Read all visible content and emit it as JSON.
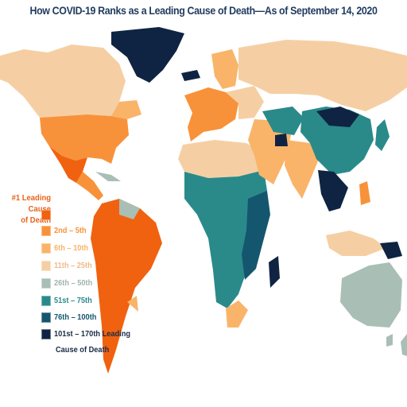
{
  "title": "How COVID-19 Ranks as a Leading Cause of Death—As of September 14, 2020",
  "colors": {
    "rank1": "#f0620f",
    "rank2_5": "#f8923a",
    "rank6_10": "#f9b46a",
    "rank11_25": "#f5cfa3",
    "rank26_50": "#a9bfb6",
    "rank51_75": "#2a8a8a",
    "rank76_100": "#14566e",
    "rank101_170": "#0f2442",
    "ocean": "#ffffff"
  },
  "legend": {
    "title_line1": "#1 Leading Cause",
    "title_line2": "of Death",
    "items": [
      {
        "label": "",
        "color": "#f0620f"
      },
      {
        "label": "2nd – 5th",
        "color": "#f8923a"
      },
      {
        "label": "6th – 10th",
        "color": "#f9b46a"
      },
      {
        "label": "11th – 25th",
        "color": "#f5cfa3"
      },
      {
        "label": "26th – 50th",
        "color": "#a9bfb6"
      },
      {
        "label": "51st – 75th",
        "color": "#2a8a8a"
      },
      {
        "label": "76th – 100th",
        "color": "#14566e"
      },
      {
        "label": "101st – 170th Leading",
        "color": "#0f2442"
      }
    ],
    "last_caption": "Cause of Death"
  },
  "regions": [
    {
      "name": "greenland",
      "rank_group": "101st – 170th"
    },
    {
      "name": "canada",
      "rank_group": "6th – 10th"
    },
    {
      "name": "usa",
      "rank_group": "2nd – 5th"
    },
    {
      "name": "mexico",
      "rank_group": "#1"
    },
    {
      "name": "central-america",
      "rank_group": "2nd – 5th"
    },
    {
      "name": "south-america",
      "rank_group": "#1"
    },
    {
      "name": "europe-west",
      "rank_group": "2nd – 5th"
    },
    {
      "name": "europe-east",
      "rank_group": "11th – 25th"
    },
    {
      "name": "russia",
      "rank_group": "11th – 25th"
    },
    {
      "name": "middle-east",
      "rank_group": "6th – 10th"
    },
    {
      "name": "north-africa",
      "rank_group": "11th – 25th"
    },
    {
      "name": "sub-saharan-africa",
      "rank_group": "51st – 75th"
    },
    {
      "name": "east-africa",
      "rank_group": "76th – 100th"
    },
    {
      "name": "south-africa",
      "rank_group": "6th – 10th"
    },
    {
      "name": "india",
      "rank_group": "6th – 10th"
    },
    {
      "name": "china",
      "rank_group": "51st – 75th"
    },
    {
      "name": "mongolia",
      "rank_group": "101st – 170th"
    },
    {
      "name": "southeast-asia",
      "rank_group": "101st – 170th"
    },
    {
      "name": "indonesia",
      "rank_group": "11th – 25th"
    },
    {
      "name": "papua",
      "rank_group": "101st – 170th"
    },
    {
      "name": "australia",
      "rank_group": "26th – 50th"
    },
    {
      "name": "japan",
      "rank_group": "51st – 75th"
    }
  ]
}
